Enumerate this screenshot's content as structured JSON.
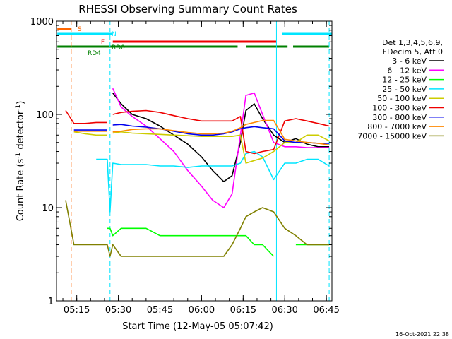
{
  "chart_data": {
    "type": "line",
    "title": "RHESSI Observing Summary Count Rates",
    "xlabel": "Start Time (12-May-05 05:07:42)",
    "ylabel": "Count Rate (s⁻¹ detector⁻¹)",
    "ylabel_parts": {
      "main": "Count Rate (s",
      "exp1": "-1",
      "mid": " detector",
      "exp2": "-1",
      "end": ")"
    },
    "yscale": "log",
    "ylim": [
      1,
      1000
    ],
    "xlim": [
      "05:07:42",
      "06:47:00"
    ],
    "x_ticks": [
      "05:15",
      "05:30",
      "05:45",
      "06:00",
      "06:15",
      "06:30",
      "06:45"
    ],
    "y_ticks": [
      "1",
      "10",
      "100",
      "1000"
    ],
    "legend_header": [
      "Det 1,3,4,5,6,9,",
      "FDecim 5, Att 0"
    ],
    "legend_position": "right",
    "timestamp": "16-Oct-2021 22:38",
    "flag_bars": [
      {
        "label": "S",
        "color": "#ff6600",
        "segments": [
          [
            "05:08",
            "05:13"
          ]
        ]
      },
      {
        "label": "N",
        "color": "#00e5ff",
        "segments": [
          [
            "05:08",
            "05:28"
          ],
          [
            "06:29",
            "06:47"
          ]
        ]
      },
      {
        "label": "F",
        "color": "#ee0000",
        "segments": [
          [
            "05:28",
            "06:27"
          ]
        ]
      },
      {
        "label": "RD4",
        "color": "#008000",
        "segments": [
          [
            "05:08",
            "05:31"
          ]
        ]
      },
      {
        "label": "RD0",
        "color": "#008000",
        "segments": [
          [
            "05:31",
            "06:13"
          ],
          [
            "06:16",
            "06:31"
          ],
          [
            "06:33",
            "06:46"
          ]
        ]
      }
    ],
    "vertical_markers": [
      {
        "color": "#ff6600",
        "style": "dashed",
        "x": "05:13"
      },
      {
        "color": "#00e5ff",
        "style": "dashed",
        "x": "05:27"
      },
      {
        "color": "#00e5ff",
        "style": "solid",
        "x": "06:27"
      },
      {
        "color": "#00e5ff",
        "style": "dashed",
        "x": "06:46"
      }
    ],
    "x": [
      "05:11",
      "05:14",
      "05:18",
      "05:22",
      "05:26",
      "05:27",
      "05:28",
      "05:31",
      "05:35",
      "05:40",
      "05:45",
      "05:50",
      "05:55",
      "06:00",
      "06:04",
      "06:08",
      "06:11",
      "06:14",
      "06:16",
      "06:19",
      "06:22",
      "06:26",
      "06:30",
      "06:34",
      "06:38",
      "06:42",
      "06:46"
    ],
    "series": [
      {
        "name": "3 - 6 keV",
        "color": "#000000",
        "values": [
          null,
          null,
          null,
          null,
          null,
          null,
          170,
          130,
          100,
          90,
          75,
          60,
          48,
          35,
          25,
          19,
          22,
          50,
          110,
          130,
          90,
          60,
          50,
          55,
          48,
          45,
          45
        ]
      },
      {
        "name": "6 - 12 keV",
        "color": "#ff00ff",
        "values": [
          null,
          null,
          null,
          null,
          null,
          null,
          190,
          120,
          95,
          75,
          55,
          40,
          25,
          17,
          12,
          10,
          14,
          60,
          160,
          170,
          100,
          50,
          45,
          45,
          44,
          44,
          44
        ]
      },
      {
        "name": "12 - 25 keV",
        "color": "#00ff00",
        "values": [
          null,
          null,
          null,
          null,
          6,
          6,
          5,
          6,
          6,
          6,
          5,
          5,
          5,
          5,
          5,
          5,
          5,
          5,
          5,
          4,
          4,
          3,
          null,
          4,
          4,
          4,
          4
        ]
      },
      {
        "name": "25 - 50 keV",
        "color": "#00e5ff",
        "values": [
          null,
          null,
          null,
          33,
          33,
          9,
          30,
          29,
          29,
          29,
          28,
          28,
          27,
          28,
          28,
          28,
          28,
          30,
          38,
          40,
          35,
          20,
          30,
          30,
          33,
          33,
          28
        ]
      },
      {
        "name": "50 - 100 keV",
        "color": "#cccc00",
        "values": [
          null,
          65,
          62,
          60,
          60,
          null,
          63,
          65,
          63,
          62,
          61,
          60,
          59,
          58,
          58,
          58,
          58,
          60,
          30,
          32,
          34,
          40,
          50,
          50,
          60,
          60,
          52
        ]
      },
      {
        "name": "100 - 300 keV",
        "color": "#ee0000",
        "values": [
          110,
          80,
          80,
          82,
          82,
          null,
          100,
          105,
          108,
          110,
          105,
          97,
          90,
          85,
          85,
          85,
          85,
          95,
          40,
          38,
          40,
          42,
          85,
          90,
          85,
          80,
          75
        ]
      },
      {
        "name": "300 - 800 keV",
        "color": "#0000ee",
        "values": [
          null,
          68,
          68,
          68,
          68,
          null,
          77,
          78,
          75,
          73,
          70,
          66,
          62,
          60,
          60,
          62,
          65,
          70,
          72,
          74,
          72,
          70,
          52,
          50,
          50,
          49,
          49
        ]
      },
      {
        "name": "800 - 7000 keV",
        "color": "#ff8800",
        "values": [
          null,
          66,
          66,
          66,
          66,
          null,
          65,
          66,
          69,
          70,
          70,
          67,
          64,
          62,
          62,
          63,
          66,
          72,
          78,
          82,
          86,
          86,
          54,
          52,
          50,
          49,
          47
        ]
      },
      {
        "name": "7000 - 15000 keV",
        "color": "#808000",
        "values": [
          12,
          4,
          4,
          4,
          4,
          3,
          4,
          3,
          3,
          3,
          3,
          3,
          3,
          3,
          3,
          3,
          4,
          6,
          8,
          9,
          10,
          9,
          6,
          5,
          4,
          4,
          4
        ]
      }
    ]
  }
}
